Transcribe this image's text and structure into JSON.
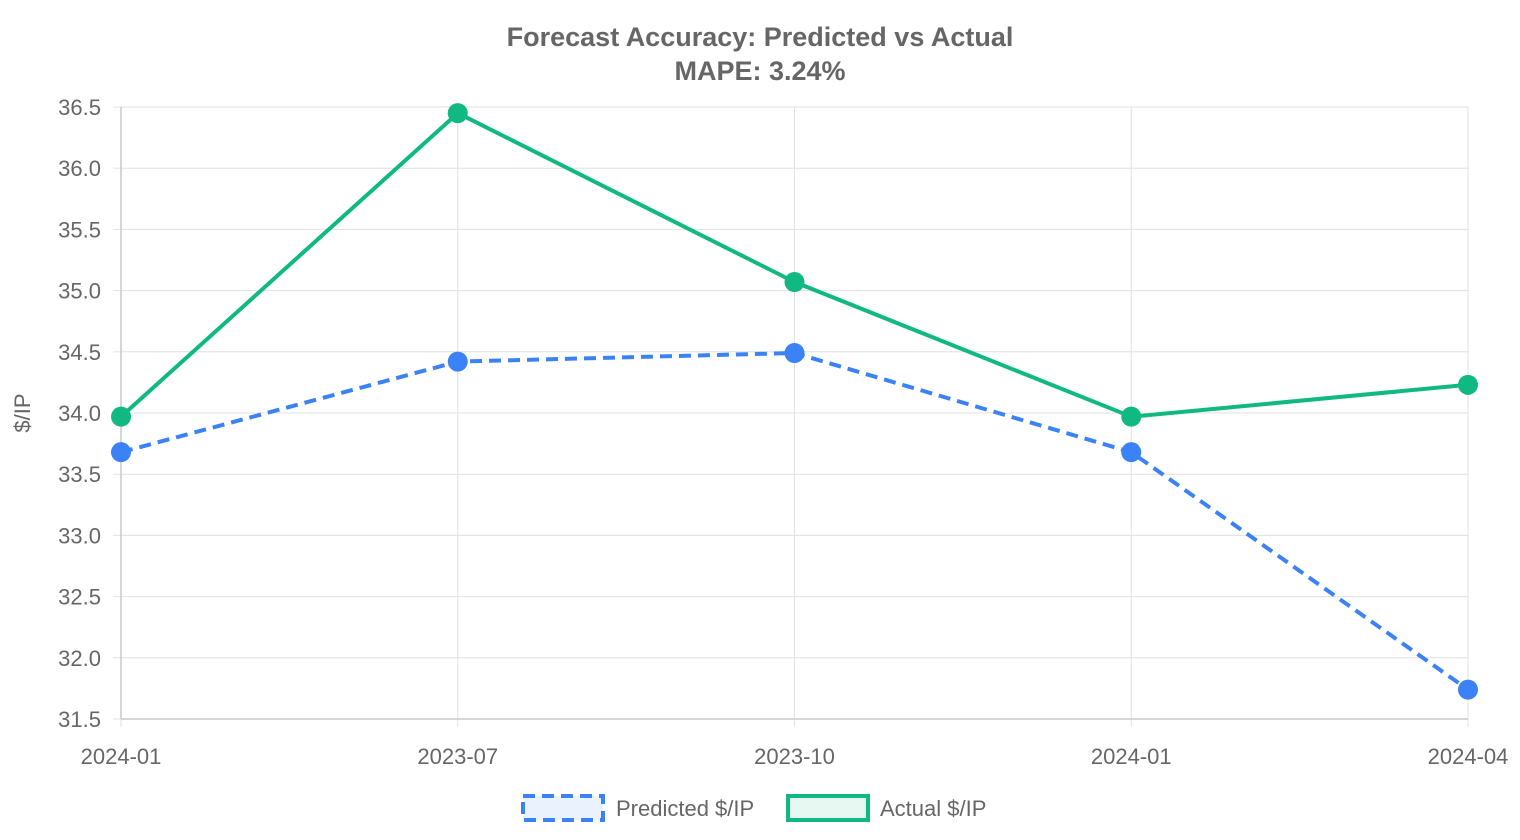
{
  "chart_data": {
    "type": "line",
    "title": "Forecast Accuracy: Predicted vs Actual",
    "subtitle": "MAPE: 3.24%",
    "xlabel": "",
    "ylabel": "$/IP",
    "categories": [
      "2024-01",
      "2023-07",
      "2023-10",
      "2024-01",
      "2024-04"
    ],
    "ylim": [
      31.5,
      36.5
    ],
    "yticks": [
      "31.5",
      "32.0",
      "32.5",
      "33.0",
      "33.5",
      "34.0",
      "34.5",
      "35.0",
      "35.5",
      "36.0",
      "36.5"
    ],
    "grid": true,
    "legend_position": "bottom",
    "series": [
      {
        "name": "Predicted $/IP",
        "values": [
          33.68,
          34.42,
          34.49,
          33.68,
          31.74
        ],
        "color": "#3b82f6",
        "fill": "#eaf2fe",
        "style": "dashed"
      },
      {
        "name": "Actual $/IP",
        "values": [
          33.97,
          36.45,
          35.07,
          33.97,
          34.23
        ],
        "color": "#10b981",
        "fill": "#e7f8f2",
        "style": "solid"
      }
    ]
  }
}
